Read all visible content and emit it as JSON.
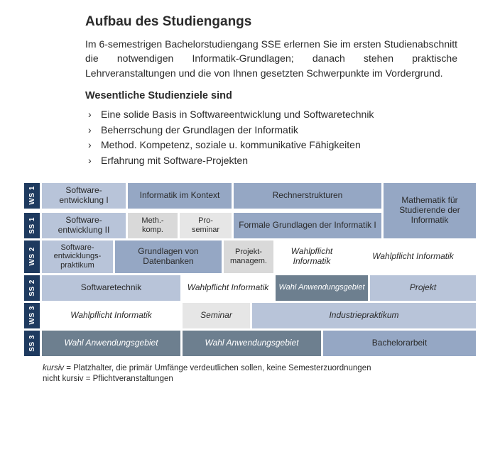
{
  "title": "Aufbau des Studiengangs",
  "intro": "Im 6-semestrigen Bachelorstudiengang SSE erlernen Sie im ersten Studienabschnitt die notwendigen Informatik-Grund­lagen; danach stehen praktische Lehrveranstaltungen und die von Ihnen gesetzten Schwerpunkte im Vordergrund.",
  "goals_heading": "Wesentliche Studienziele sind",
  "goals": [
    "Eine solide Basis in Softwareentwicklung und Softwaretechnik",
    "Beherrschung der Grundlagen der Informatik",
    "Method. Kompetenz, soziale u. kommunikative Fähigkeiten",
    "Erfahrung mit Software-Projekten"
  ],
  "semesters": {
    "ws1": "WS 1",
    "ss1": "SS 1",
    "ws2": "WS 2",
    "ss2": "SS 2",
    "ws3": "WS 3",
    "ss3": "SS 3"
  },
  "cells": {
    "se1": "Software-\nentwicklung I",
    "iik": "Informatik im Kontext",
    "rs": "Rechnerstrukturen",
    "math": "Mathematik für Studierende der Informatik",
    "se2": "Software-\nentwicklung II",
    "meth": "Meth.-\nkomp.",
    "pro": "Pro-\nseminar",
    "fgi": "Formale Grundlagen der Informatik I",
    "sep": "Software-\nentwicklungs-\npraktikum",
    "gdb": "Grundlagen von Datenbanken",
    "pm": "Projekt-\nmanagem.",
    "wpi1": "Wahlpflicht Informatik",
    "wpi2": "Wahlpflicht Informatik",
    "swt": "Softwaretechnik",
    "wpi3": "Wahlpflicht Informatik",
    "wag1": "Wahl Anwendungsgebiet",
    "projekt": "Projekt",
    "wpi4": "Wahlpflicht Informatik",
    "seminar": "Seminar",
    "indpr": "Industriepraktikum",
    "wag2": "Wahl Anwendungsgebiet",
    "wag3": "Wahl Anwendungsgebiet",
    "ba": "Bachelorarbeit"
  },
  "legend": {
    "l1a": "kursiv",
    "l1b": " = Platzhalter, die primär Umfänge verdeutlichen sollen, keine Semesterzuordnungen",
    "l2": "nicht kursiv = Pflichtveranstaltungen"
  },
  "colors": {
    "header_bg": "#1e3a5f",
    "lightblue": "#b8c4d9",
    "medblue": "#95a7c4",
    "pale": "#d9d9d9",
    "faint": "#e6e6e6",
    "slate": "#6d7f8f",
    "text": "#2a2a2a"
  }
}
